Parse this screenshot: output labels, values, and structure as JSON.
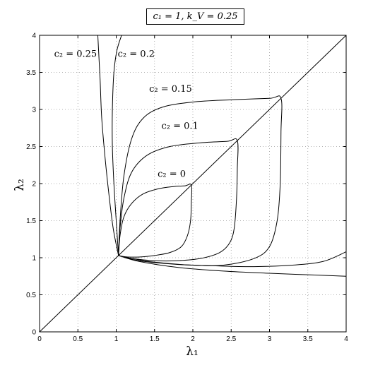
{
  "chart_data": {
    "type": "line",
    "title": "c₁ = 1,  k_V = 0.25",
    "xlabel": "λ₁",
    "ylabel": "λ₂",
    "xlim": [
      0,
      4
    ],
    "ylim": [
      0,
      4
    ],
    "xticks": [
      "0",
      "0.5",
      "1",
      "1.5",
      "2",
      "2.5",
      "3",
      "3.5",
      "4"
    ],
    "yticks": [
      "0",
      "0.5",
      "1",
      "1.5",
      "2",
      "2.5",
      "3",
      "3.5",
      "4"
    ],
    "grid": true,
    "legend": "none",
    "annotations": [
      {
        "text": "c₂ = 0.25",
        "at": [
          0.19,
          3.71
        ]
      },
      {
        "text": "c₂ = 0.2",
        "at": [
          1.02,
          3.71
        ]
      },
      {
        "text": "c₂ = 0.15",
        "at": [
          1.43,
          3.24
        ]
      },
      {
        "text": "c₂ = 0.1",
        "at": [
          1.59,
          2.74
        ]
      },
      {
        "text": "c₂ = 0",
        "at": [
          1.54,
          2.09
        ]
      }
    ],
    "series": [
      {
        "name": "diagonal",
        "x": [
          0,
          4
        ],
        "y": [
          0,
          4
        ]
      },
      {
        "name": "c₂ = 0",
        "x": [
          1.03,
          1.05,
          1.1,
          1.2,
          1.35,
          1.55,
          1.75,
          1.9,
          1.98,
          1.98,
          1.97,
          1.93,
          1.85,
          1.7,
          1.5,
          1.3,
          1.15,
          1.07,
          1.03
        ],
        "y": [
          1.03,
          1.3,
          1.55,
          1.73,
          1.86,
          1.93,
          1.96,
          1.97,
          1.98,
          1.75,
          1.5,
          1.3,
          1.15,
          1.07,
          1.03,
          1.01,
          1.01,
          1.02,
          1.03
        ]
      },
      {
        "name": "c₂ = 0.1",
        "x": [
          1.03,
          1.05,
          1.1,
          1.2,
          1.4,
          1.7,
          2.1,
          2.45,
          2.58,
          2.58,
          2.57,
          2.54,
          2.48,
          2.35,
          2.1,
          1.8,
          1.5,
          1.2,
          1.03
        ],
        "y": [
          1.03,
          1.4,
          1.8,
          2.15,
          2.38,
          2.5,
          2.55,
          2.57,
          2.58,
          2.2,
          1.8,
          1.4,
          1.2,
          1.07,
          0.99,
          0.96,
          0.96,
          0.99,
          1.03
        ]
      },
      {
        "name": "c₂ = 0.15",
        "x": [
          1.03,
          1.05,
          1.1,
          1.2,
          1.35,
          1.6,
          2.0,
          2.5,
          3.0,
          3.15,
          3.15,
          3.14,
          3.1,
          3.0,
          2.8,
          2.4,
          2.0,
          1.5,
          1.2,
          1.03
        ],
        "y": [
          1.03,
          1.5,
          2.1,
          2.6,
          2.88,
          3.03,
          3.1,
          3.13,
          3.15,
          3.15,
          2.7,
          2.0,
          1.5,
          1.15,
          0.99,
          0.9,
          0.9,
          0.94,
          0.99,
          1.03
        ]
      },
      {
        "name": "c₂ = 0.2",
        "x": [
          1.03,
          1.0,
          0.97,
          0.95,
          0.95,
          0.97,
          1.01,
          1.07
        ],
        "y": [
          1.03,
          1.5,
          2.0,
          2.5,
          3.0,
          3.5,
          3.8,
          4.0
        ]
      },
      {
        "name": "c₂ = 0.2 (lower)",
        "x": [
          1.03,
          1.3,
          1.8,
          2.3,
          2.8,
          3.3,
          3.7,
          4.0
        ],
        "y": [
          1.03,
          0.96,
          0.91,
          0.89,
          0.88,
          0.9,
          0.95,
          1.08
        ]
      },
      {
        "name": "c₂ = 0.25",
        "x": [
          1.03,
          0.96,
          0.9,
          0.85,
          0.81,
          0.79,
          0.77,
          0.76
        ],
        "y": [
          1.03,
          1.4,
          1.9,
          2.4,
          2.9,
          3.4,
          3.8,
          4.0
        ]
      },
      {
        "name": "c₂ = 0.25 (lower)",
        "x": [
          1.03,
          1.3,
          1.8,
          2.4,
          3.0,
          3.5,
          4.0
        ],
        "y": [
          1.03,
          0.95,
          0.87,
          0.82,
          0.79,
          0.77,
          0.75
        ]
      }
    ]
  }
}
